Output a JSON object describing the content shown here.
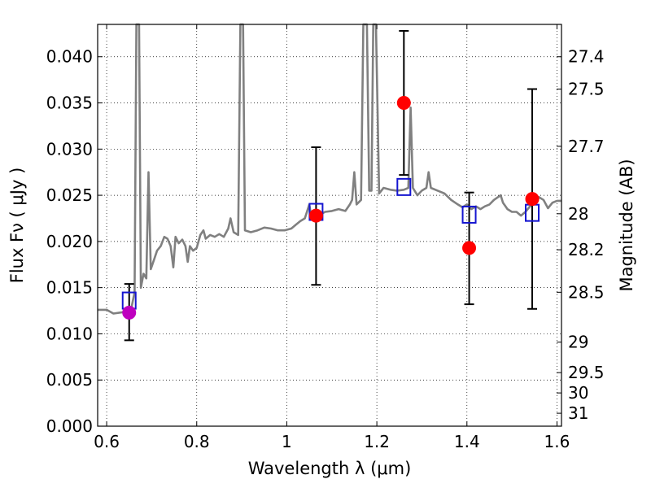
{
  "chart_data": {
    "type": "scatter",
    "xlabel": "Wavelength  λ (μm)",
    "ylabel": "Flux  Fν  ( μJy )",
    "ylabel_right": "Magnitude (AB)",
    "xlim": [
      0.58,
      1.61
    ],
    "ylim": [
      0.0,
      0.0435
    ],
    "grid": true,
    "xticks": [
      {
        "value": 0.6,
        "label": "0.6"
      },
      {
        "value": 0.8,
        "label": "0.8"
      },
      {
        "value": 1.0,
        "label": "1"
      },
      {
        "value": 1.2,
        "label": "1.2"
      },
      {
        "value": 1.4,
        "label": "1.4"
      },
      {
        "value": 1.6,
        "label": "1.6"
      }
    ],
    "yticks": [
      {
        "value": 0.0,
        "label": "0.000"
      },
      {
        "value": 0.005,
        "label": "0.005"
      },
      {
        "value": 0.01,
        "label": "0.010"
      },
      {
        "value": 0.015,
        "label": "0.015"
      },
      {
        "value": 0.02,
        "label": "0.020"
      },
      {
        "value": 0.025,
        "label": "0.025"
      },
      {
        "value": 0.03,
        "label": "0.030"
      },
      {
        "value": 0.035,
        "label": "0.035"
      },
      {
        "value": 0.04,
        "label": "0.040"
      }
    ],
    "right_ticks": [
      {
        "flux": 0.04,
        "label": "27.4"
      },
      {
        "flux": 0.0365,
        "label": "27.5"
      },
      {
        "flux": 0.0303,
        "label": "27.7"
      },
      {
        "flux": 0.023,
        "label": "28"
      },
      {
        "flux": 0.0191,
        "label": "28.2"
      },
      {
        "flux": 0.0145,
        "label": "28.5"
      },
      {
        "flux": 0.0091,
        "label": "29"
      },
      {
        "flux": 0.0058,
        "label": "29.5"
      },
      {
        "flux": 0.0036,
        "label": "30"
      },
      {
        "flux": 0.0014,
        "label": "31"
      }
    ],
    "series": [
      {
        "kind": "line",
        "color": "#808080",
        "points": [
          [
            0.58,
            0.0126
          ],
          [
            0.6,
            0.0126
          ],
          [
            0.615,
            0.0122
          ],
          [
            0.63,
            0.0123
          ],
          [
            0.645,
            0.0124
          ],
          [
            0.655,
            0.0128
          ],
          [
            0.662,
            0.0145
          ],
          [
            0.666,
            0.0435
          ],
          [
            0.672,
            0.0435
          ],
          [
            0.676,
            0.015
          ],
          [
            0.682,
            0.0165
          ],
          [
            0.688,
            0.016
          ],
          [
            0.693,
            0.0275
          ],
          [
            0.698,
            0.017
          ],
          [
            0.705,
            0.018
          ],
          [
            0.712,
            0.019
          ],
          [
            0.72,
            0.0195
          ],
          [
            0.728,
            0.0205
          ],
          [
            0.735,
            0.0203
          ],
          [
            0.742,
            0.0195
          ],
          [
            0.748,
            0.0172
          ],
          [
            0.753,
            0.0205
          ],
          [
            0.76,
            0.0198
          ],
          [
            0.768,
            0.0202
          ],
          [
            0.775,
            0.0195
          ],
          [
            0.78,
            0.0178
          ],
          [
            0.785,
            0.0195
          ],
          [
            0.792,
            0.019
          ],
          [
            0.8,
            0.0193
          ],
          [
            0.808,
            0.0207
          ],
          [
            0.815,
            0.0212
          ],
          [
            0.82,
            0.0203
          ],
          [
            0.83,
            0.0207
          ],
          [
            0.84,
            0.0205
          ],
          [
            0.85,
            0.0208
          ],
          [
            0.86,
            0.0205
          ],
          [
            0.87,
            0.0214
          ],
          [
            0.875,
            0.0225
          ],
          [
            0.882,
            0.021
          ],
          [
            0.892,
            0.0207
          ],
          [
            0.897,
            0.0435
          ],
          [
            0.903,
            0.0435
          ],
          [
            0.907,
            0.0212
          ],
          [
            0.92,
            0.021
          ],
          [
            0.935,
            0.0212
          ],
          [
            0.95,
            0.0215
          ],
          [
            0.965,
            0.0214
          ],
          [
            0.98,
            0.0212
          ],
          [
            0.995,
            0.0212
          ],
          [
            1.01,
            0.0214
          ],
          [
            1.02,
            0.0218
          ],
          [
            1.03,
            0.0222
          ],
          [
            1.04,
            0.0225
          ],
          [
            1.05,
            0.024
          ],
          [
            1.055,
            0.0225
          ],
          [
            1.07,
            0.0228
          ],
          [
            1.085,
            0.0232
          ],
          [
            1.1,
            0.0233
          ],
          [
            1.115,
            0.0235
          ],
          [
            1.13,
            0.0233
          ],
          [
            1.14,
            0.024
          ],
          [
            1.145,
            0.0245
          ],
          [
            1.15,
            0.0275
          ],
          [
            1.155,
            0.024
          ],
          [
            1.165,
            0.0245
          ],
          [
            1.17,
            0.0435
          ],
          [
            1.178,
            0.0435
          ],
          [
            1.183,
            0.0255
          ],
          [
            1.188,
            0.0255
          ],
          [
            1.192,
            0.0435
          ],
          [
            1.198,
            0.0435
          ],
          [
            1.205,
            0.0252
          ],
          [
            1.215,
            0.0258
          ],
          [
            1.23,
            0.0256
          ],
          [
            1.245,
            0.0255
          ],
          [
            1.26,
            0.0256
          ],
          [
            1.27,
            0.0258
          ],
          [
            1.275,
            0.0345
          ],
          [
            1.28,
            0.0258
          ],
          [
            1.29,
            0.025
          ],
          [
            1.3,
            0.0255
          ],
          [
            1.31,
            0.0258
          ],
          [
            1.315,
            0.0275
          ],
          [
            1.32,
            0.0258
          ],
          [
            1.335,
            0.0255
          ],
          [
            1.35,
            0.0252
          ],
          [
            1.365,
            0.0245
          ],
          [
            1.38,
            0.024
          ],
          [
            1.39,
            0.0237
          ],
          [
            1.4,
            0.024
          ],
          [
            1.41,
            0.0235
          ],
          [
            1.42,
            0.0238
          ],
          [
            1.43,
            0.0235
          ],
          [
            1.44,
            0.0238
          ],
          [
            1.45,
            0.024
          ],
          [
            1.46,
            0.0245
          ],
          [
            1.475,
            0.025
          ],
          [
            1.48,
            0.0242
          ],
          [
            1.49,
            0.0235
          ],
          [
            1.5,
            0.0232
          ],
          [
            1.51,
            0.0232
          ],
          [
            1.52,
            0.0228
          ],
          [
            1.53,
            0.0232
          ],
          [
            1.54,
            0.0238
          ],
          [
            1.55,
            0.0242
          ],
          [
            1.56,
            0.0248
          ],
          [
            1.57,
            0.0245
          ],
          [
            1.58,
            0.0236
          ],
          [
            1.59,
            0.0242
          ],
          [
            1.6,
            0.0244
          ],
          [
            1.61,
            0.0244
          ]
        ]
      },
      {
        "kind": "model_squares",
        "color": "#1515d0",
        "points": [
          [
            0.65,
            0.0136
          ],
          [
            1.065,
            0.0232
          ],
          [
            1.26,
            0.0259
          ],
          [
            1.405,
            0.0229
          ],
          [
            1.545,
            0.0231
          ]
        ]
      },
      {
        "kind": "observed_points",
        "color": "#ff0000",
        "points": [
          {
            "x": 1.065,
            "y": 0.0228,
            "err_lo": 0.0153,
            "err_hi": 0.0302
          },
          {
            "x": 1.26,
            "y": 0.035,
            "err_lo": 0.0272,
            "err_hi": 0.0428
          },
          {
            "x": 1.405,
            "y": 0.0193,
            "err_lo": 0.0132,
            "err_hi": 0.0253
          },
          {
            "x": 1.545,
            "y": 0.0246,
            "err_lo": 0.0127,
            "err_hi": 0.0365
          }
        ]
      },
      {
        "kind": "observed_points",
        "color": "#bf00bf",
        "points": [
          {
            "x": 0.65,
            "y": 0.0123,
            "err_lo": 0.0093,
            "err_hi": 0.0154
          }
        ]
      }
    ]
  }
}
